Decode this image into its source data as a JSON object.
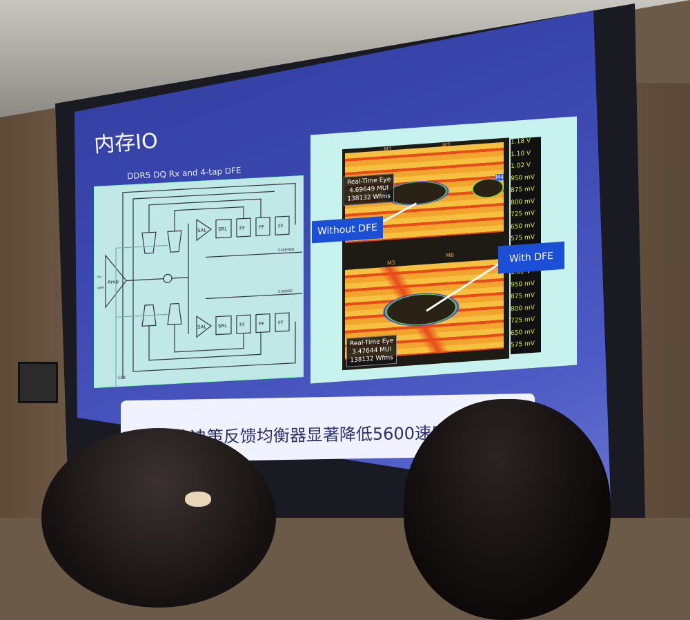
{
  "slide": {
    "title": "内存IO",
    "diagram_title": "DDR5 DQ Rx and 4-tap DFE",
    "circuit_labels": {
      "amp": "Amp",
      "sal": "SAL",
      "srl": "SRL",
      "ff": "FF",
      "clk_even": "CLKEVEN",
      "clk_odd": "CLKODD",
      "clk": "CLK",
      "dq": "DQ",
      "vref": "VREF"
    },
    "eye_top": {
      "info": [
        "Real-Time Eye",
        "4.69649 MUI",
        "138132 Wfms"
      ],
      "label": "Without DFE",
      "markers": [
        "M1",
        "M2",
        "M4"
      ]
    },
    "eye_bottom": {
      "info": [
        "Real-Time Eye",
        "3.47644 MUI",
        "138132 Wfms"
      ],
      "label": "With DFE",
      "markers": [
        "M5",
        "M6"
      ]
    },
    "voltage_scale_top": [
      "1.18 V",
      "1.10 V",
      "1.02 V",
      "950 mV",
      "875 mV",
      "800 mV",
      "725 mV",
      "650 mV",
      "575 mV"
    ],
    "voltage_scale_bottom": [
      "1.02 V",
      "950 mV",
      "875 mV",
      "800 mV",
      "725 mV",
      "650 mV",
      "575 mV"
    ],
    "caption": "4 抽头决策反馈均衡器显著降低5600速度"
  }
}
